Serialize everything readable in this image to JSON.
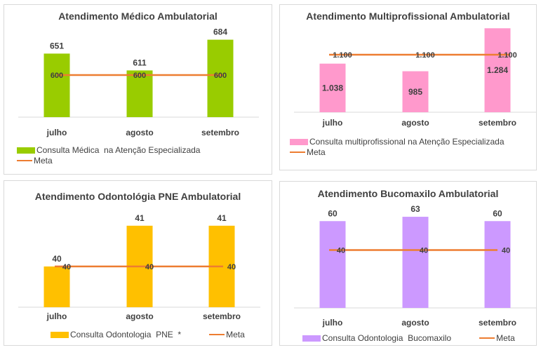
{
  "chart_data": [
    {
      "type": "bar",
      "title": "Atendimento Médico Ambulatorial",
      "categories": [
        "julho",
        "agosto",
        "setembro"
      ],
      "series": [
        {
          "name": "Consulta Médica  na Atenção Especializada",
          "type": "bar",
          "values": [
            651,
            611,
            684
          ],
          "labels": [
            "651",
            "611",
            "684"
          ],
          "color": "#99cc00"
        },
        {
          "name": "Meta",
          "type": "line",
          "values": [
            600,
            600,
            600
          ],
          "labels": [
            "600",
            "600",
            "600"
          ],
          "color": "#ed7d31"
        }
      ],
      "ylim": [
        500,
        700
      ],
      "legend": "bottom-left, stacked",
      "grid": false
    },
    {
      "type": "bar",
      "title": "Atendimento Multiprofissional Ambulatorial",
      "categories": [
        "julho",
        "agosto",
        "setembro"
      ],
      "series": [
        {
          "name": "Consulta multiprofissional na Atenção Especializada",
          "type": "bar",
          "values": [
            1038,
            985,
            1284
          ],
          "labels": [
            "1.038",
            "985",
            "1.284"
          ],
          "color": "#ff99cc"
        },
        {
          "name": "Meta",
          "type": "line",
          "values": [
            1100,
            1100,
            1100
          ],
          "labels": [
            "1.100",
            "1.100",
            "1.100"
          ],
          "color": "#ed7d31"
        }
      ],
      "ylim": [
        700,
        1300
      ],
      "legend": "bottom-left, stacked",
      "grid": false
    },
    {
      "type": "bar",
      "title": "Atendimento Odontológia PNE Ambulatorial",
      "categories": [
        "julho",
        "agosto",
        "setembro"
      ],
      "series": [
        {
          "name": "Consulta Odontologia  PNE  *",
          "type": "bar",
          "values": [
            40,
            41,
            41
          ],
          "labels": [
            "40",
            "41",
            "41"
          ],
          "color": "#ffc000"
        },
        {
          "name": "Meta",
          "type": "line",
          "values": [
            40,
            40,
            40
          ],
          "labels": [
            "40",
            "40",
            "40"
          ],
          "color": "#ed7d31"
        }
      ],
      "ylim": [
        39,
        41.1
      ],
      "legend": "bottom, single row",
      "grid": false
    },
    {
      "type": "bar",
      "title": "Atendimento Bucomaxilo Ambulatorial",
      "categories": [
        "julho",
        "agosto",
        "setembro"
      ],
      "series": [
        {
          "name": "Consulta Odontologia  Bucomaxilo",
          "type": "bar",
          "values": [
            60,
            63,
            60
          ],
          "labels": [
            "60",
            "63",
            "60"
          ],
          "color": "#cc99ff"
        },
        {
          "name": "Meta",
          "type": "line",
          "values": [
            40,
            40,
            40
          ],
          "labels": [
            "40",
            "40",
            "40"
          ],
          "color": "#ed7d31"
        }
      ],
      "ylim": [
        0,
        64
      ],
      "legend": "bottom, single row",
      "grid": false
    }
  ]
}
